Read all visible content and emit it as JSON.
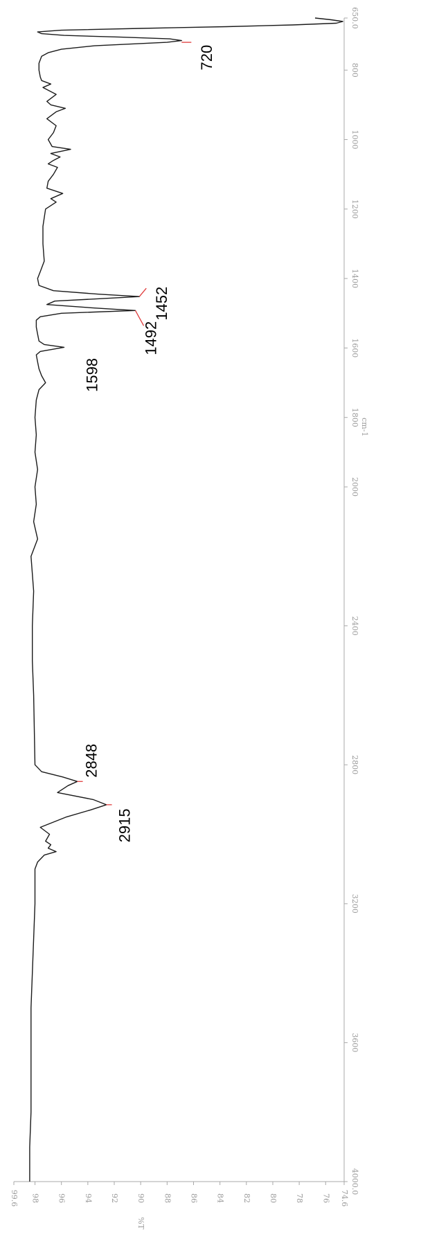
{
  "chart_data": {
    "type": "line",
    "title": "",
    "orientation": "rotated-90-clockwise",
    "xlabel": "cm-1",
    "ylabel": "%T",
    "xlim": [
      4000.0,
      650.0
    ],
    "ylim": [
      74.6,
      99.6
    ],
    "x_ticks": [
      4000.0,
      3600,
      3200,
      2800,
      2400,
      2000,
      1800,
      1600,
      1400,
      1200,
      1000,
      800,
      650.0
    ],
    "x_tick_labels": [
      "4000.0",
      "3600",
      "3200",
      "2800",
      "2400",
      "2000",
      "1800",
      "1600",
      "1400",
      "1200",
      "1000",
      "800",
      "650.0"
    ],
    "y_ticks": [
      74.6,
      76,
      78,
      80,
      82,
      84,
      86,
      88,
      90,
      92,
      94,
      96,
      98,
      99.6
    ],
    "y_tick_labels": [
      "74.6",
      "76",
      "78",
      "80",
      "82",
      "84",
      "86",
      "88",
      "90",
      "92",
      "94",
      "96",
      "98",
      "99.6"
    ],
    "grid": false,
    "series": [
      {
        "color": "#1a1a1a",
        "x": [
          4000,
          3900,
          3800,
          3700,
          3600,
          3500,
          3400,
          3300,
          3200,
          3100,
          3080,
          3060,
          3050,
          3040,
          3030,
          3020,
          3000,
          2980,
          2950,
          2930,
          2915,
          2900,
          2880,
          2860,
          2848,
          2835,
          2820,
          2800,
          2600,
          2500,
          2400,
          2300,
          2200,
          2150,
          2100,
          2050,
          2000,
          1950,
          1900,
          1850,
          1800,
          1750,
          1720,
          1700,
          1680,
          1660,
          1640,
          1620,
          1610,
          1598,
          1590,
          1580,
          1560,
          1540,
          1520,
          1510,
          1500,
          1492,
          1485,
          1475,
          1465,
          1458,
          1452,
          1445,
          1435,
          1420,
          1400,
          1380,
          1350,
          1300,
          1250,
          1200,
          1180,
          1170,
          1155,
          1140,
          1120,
          1100,
          1080,
          1070,
          1060,
          1050,
          1040,
          1028,
          1020,
          1000,
          980,
          960,
          940,
          920,
          910,
          900,
          890,
          870,
          850,
          840,
          830,
          820,
          800,
          780,
          760,
          750,
          740,
          730,
          720,
          715,
          710,
          705,
          700,
          695,
          690,
          685,
          680,
          675,
          670,
          665,
          660,
          655,
          650
        ],
        "values": [
          98.4,
          98.4,
          98.3,
          98.3,
          98.3,
          98.3,
          98.2,
          98.1,
          98.0,
          98.0,
          97.8,
          97.3,
          96.4,
          97.0,
          96.8,
          97.2,
          96.9,
          97.6,
          95.6,
          93.8,
          92.6,
          93.6,
          96.3,
          95.5,
          94.8,
          95.9,
          97.5,
          98.0,
          98.1,
          98.2,
          98.2,
          98.1,
          98.3,
          97.8,
          98.1,
          97.9,
          98.0,
          97.8,
          98.0,
          97.9,
          98.0,
          97.9,
          97.7,
          97.2,
          97.5,
          97.7,
          97.8,
          97.9,
          97.6,
          95.8,
          97.3,
          97.7,
          97.8,
          97.9,
          97.9,
          97.6,
          96.0,
          90.4,
          93.5,
          97.1,
          96.5,
          93.0,
          90.1,
          93.2,
          96.6,
          97.7,
          97.8,
          97.6,
          97.3,
          97.4,
          97.4,
          97.2,
          96.4,
          96.8,
          95.9,
          97.1,
          97.0,
          96.6,
          96.3,
          97.0,
          96.6,
          96.1,
          96.8,
          95.3,
          96.7,
          97.0,
          96.6,
          96.4,
          97.1,
          96.4,
          95.7,
          96.8,
          97.1,
          96.4,
          97.4,
          96.8,
          97.5,
          97.6,
          97.7,
          97.7,
          97.5,
          97.0,
          96.0,
          93.5,
          88.0,
          86.9,
          87.8,
          91.5,
          95.8,
          97.5,
          97.8,
          96.0,
          90.0,
          83.5,
          78.5,
          75.2,
          74.7,
          75.6,
          76.8
        ]
      }
    ],
    "annotations": [
      {
        "text": "720",
        "x": 720,
        "y": 86.9
      },
      {
        "text": "1452",
        "x": 1452,
        "y": 90.1
      },
      {
        "text": "1492",
        "x": 1492,
        "y": 90.4
      },
      {
        "text": "1598",
        "x": 1598,
        "y": 95.8
      },
      {
        "text": "2848",
        "x": 2848,
        "y": 94.8
      },
      {
        "text": "2915",
        "x": 2915,
        "y": 92.6
      }
    ],
    "colors": {
      "trace": "#1a1a1a",
      "marker": "#e03c3c",
      "axis": "#a8a8a8"
    }
  }
}
